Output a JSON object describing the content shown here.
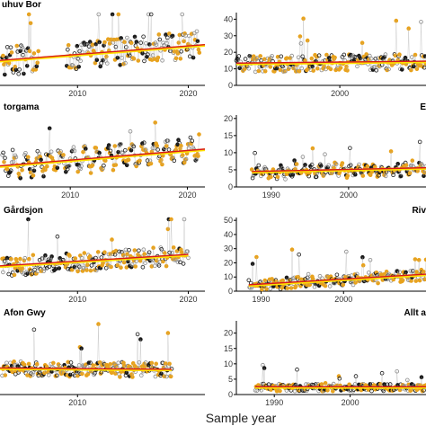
{
  "figure": {
    "xlabel": "Sample year"
  },
  "colors": {
    "point_orange": "#e8a21c",
    "point_grey": "#8a8a8a",
    "point_dark": "#1a1a1a",
    "trend_red": "#d7191c",
    "trend_yellow": "#ffe100"
  },
  "chart_data": [
    {
      "type": "scatter",
      "title": "uhuv Bor",
      "xlim": [
        2003,
        2021.5
      ],
      "ylim": [
        0,
        30
      ],
      "xticks": [
        2010,
        2020
      ],
      "yticks": [],
      "trend": [
        [
          2003,
          10.0
        ],
        [
          2021.5,
          16.5
        ]
      ],
      "series": [
        {
          "x_range": [
            2003.2,
            2021.0
          ],
          "y_mean": 13,
          "y_spread": 6,
          "gap": [
            2006.5,
            2009.0
          ],
          "seasonal": 0
        }
      ]
    },
    {
      "type": "scatter",
      "title": "",
      "xlim": [
        1988,
        2010
      ],
      "ylim": [
        0,
        44
      ],
      "xticks": [
        2000
      ],
      "yticks": [
        0,
        10,
        20,
        30,
        40
      ],
      "trend": [
        [
          1988,
          13.0
        ],
        [
          2010,
          14.2
        ]
      ],
      "series": [
        {
          "x_range": [
            1988.0,
            2010.0
          ],
          "y_mean": 13,
          "y_spread": 5,
          "seasonal": 0
        }
      ]
    },
    {
      "type": "scatter",
      "title": "torgama",
      "xlim": [
        2004,
        2021.5
      ],
      "ylim": [
        0,
        30
      ],
      "xticks": [
        2010,
        2020
      ],
      "yticks": [],
      "trend": [
        [
          2004,
          8.5
        ],
        [
          2021.5,
          15.5
        ]
      ],
      "series": [
        {
          "x_range": [
            2004.2,
            2021.0
          ],
          "y_mean": 12,
          "y_spread": 2,
          "seasonal": 4
        }
      ]
    },
    {
      "type": "scatter",
      "title": "E",
      "xlim": [
        1985.5,
        2010
      ],
      "ylim": [
        0,
        21
      ],
      "xticks": [
        1990,
        2000
      ],
      "yticks": [
        0,
        5,
        10,
        15,
        20
      ],
      "trend": [
        [
          1987.5,
          4.3
        ],
        [
          2010,
          5.4
        ]
      ],
      "series": [
        {
          "x_range": [
            1987.5,
            2010.0
          ],
          "y_mean": 5,
          "y_spread": 1.2,
          "seasonal": 1.2
        }
      ]
    },
    {
      "type": "scatter",
      "title": "Gårdsjon",
      "xlim": [
        2003,
        2021.5
      ],
      "ylim": [
        0,
        45
      ],
      "xticks": [
        2010,
        2020
      ],
      "yticks": [],
      "trend": [
        [
          2003,
          15.0
        ],
        [
          2020,
          22.0
        ]
      ],
      "series": [
        {
          "x_range": [
            2003.2,
            2020.0
          ],
          "y_mean": 18,
          "y_spread": 6,
          "seasonal": 0
        }
      ]
    },
    {
      "type": "scatter",
      "title": "Riv",
      "xlim": [
        1987,
        2010
      ],
      "ylim": [
        0,
        52
      ],
      "xticks": [
        1990,
        2000
      ],
      "yticks": [
        0,
        10,
        20,
        30,
        40,
        50
      ],
      "trend": [
        [
          1988.5,
          4.0
        ],
        [
          2010,
          11.5
        ]
      ],
      "series": [
        {
          "x_range": [
            1988.5,
            2010.0
          ],
          "y_mean": 8,
          "y_spread": 4,
          "seasonal": 0
        }
      ]
    },
    {
      "type": "scatter",
      "title": "Afon Gwy",
      "xlim": [
        2003,
        2021.5
      ],
      "ylim": [
        0,
        30
      ],
      "xticks": [
        2010
      ],
      "yticks": [],
      "trend": [
        [
          2003,
          10.5
        ],
        [
          2018.5,
          10.0
        ]
      ],
      "series": [
        {
          "x_range": [
            2003.2,
            2018.5
          ],
          "y_mean": 10,
          "y_spread": 3,
          "seasonal": 0
        }
      ]
    },
    {
      "type": "scatter",
      "title": "Allt a",
      "xlim": [
        1985,
        2010
      ],
      "ylim": [
        0,
        24
      ],
      "xticks": [
        1990,
        2000
      ],
      "yticks": [
        0,
        5,
        10,
        15,
        20
      ],
      "trend": [
        [
          1987.5,
          2.3
        ],
        [
          2010,
          2.3
        ]
      ],
      "series": [
        {
          "x_range": [
            1987.5,
            2010.0
          ],
          "y_mean": 2.3,
          "y_spread": 1.2,
          "seasonal": 0
        }
      ]
    }
  ]
}
